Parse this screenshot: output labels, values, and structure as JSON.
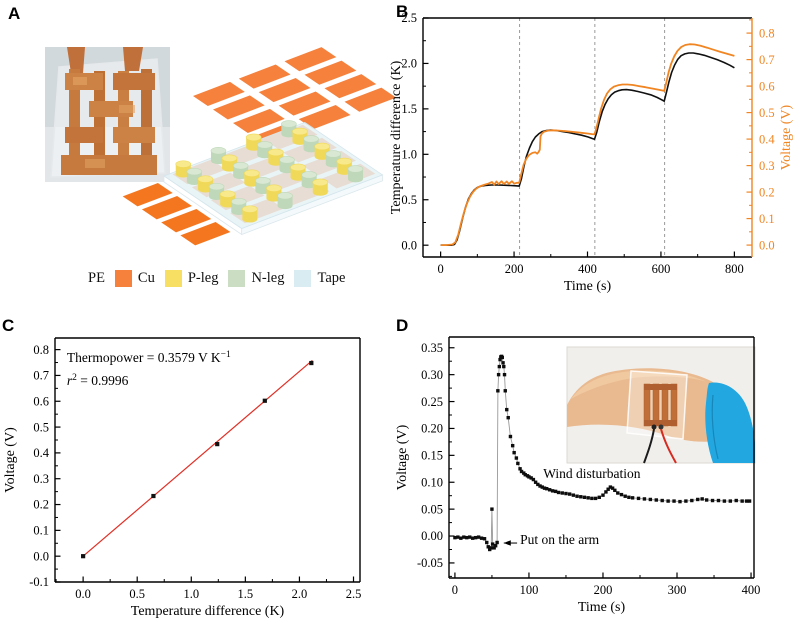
{
  "panels": {
    "a": {
      "label": "A",
      "legend": {
        "leading_label": "PE",
        "items": [
          {
            "label": "Cu",
            "color": "#F5813C"
          },
          {
            "label": "P-leg",
            "color": "#F7DF63"
          },
          {
            "label": "N-leg",
            "color": "#CBDEC4"
          },
          {
            "label": "Tape",
            "color": "#D9ECF2"
          }
        ]
      }
    },
    "b": {
      "label": "B"
    },
    "c": {
      "label": "C"
    },
    "d": {
      "label": "D"
    }
  },
  "colors": {
    "curve_black": "#111111",
    "curve_orange": "#F08522",
    "fit_red": "#E03127",
    "dash_gray": "#9a9a9a",
    "pad_orange": "#F5813C",
    "pad_orange_out": "#F4771F",
    "leg_yellow_side": "#F0D959",
    "leg_yellow_top": "#F8EA8C",
    "leg_green_side": "#BFD8B9",
    "leg_green_top": "#D8E8D2",
    "tape_fill": "#E4F1F5"
  },
  "chart_data": [
    {
      "id": "B",
      "type": "line",
      "title": "",
      "xlabel": "Time (s)",
      "ylabel": "Temperature difference (K)",
      "y2label": "Voltage (V)",
      "y2color": "#F08522",
      "xlim": [
        -48,
        848
      ],
      "ylim": [
        -0.13,
        2.5
      ],
      "y2lim": [
        -0.045,
        0.857
      ],
      "xticks": [
        {
          "v": 0,
          "l": "0"
        },
        {
          "v": 200,
          "l": "200"
        },
        {
          "v": 400,
          "l": "400"
        },
        {
          "v": 600,
          "l": "600"
        },
        {
          "v": 800,
          "l": "800"
        }
      ],
      "xminor": 100,
      "yticks": [
        {
          "v": 0,
          "l": "0.0"
        },
        {
          "v": 0.5,
          "l": "0.5"
        },
        {
          "v": 1.0,
          "l": "1.0"
        },
        {
          "v": 1.5,
          "l": "1.5"
        },
        {
          "v": 2.0,
          "l": "2.0"
        },
        {
          "v": 2.5,
          "l": "2.5"
        }
      ],
      "yminor": 0.25,
      "y2ticks": [
        {
          "v": 0,
          "l": "0.0"
        },
        {
          "v": 0.1,
          "l": "0.1"
        },
        {
          "v": 0.2,
          "l": "0.2"
        },
        {
          "v": 0.3,
          "l": "0.3"
        },
        {
          "v": 0.4,
          "l": "0.4"
        },
        {
          "v": 0.5,
          "l": "0.5"
        },
        {
          "v": 0.6,
          "l": "0.6"
        },
        {
          "v": 0.7,
          "l": "0.7"
        },
        {
          "v": 0.8,
          "l": "0.8"
        }
      ],
      "y2minor": 0.05,
      "vlines": [
        215,
        420,
        610
      ],
      "series": [
        {
          "name": "temperature-difference",
          "color": "#111111",
          "width": 1.6,
          "axis": "y",
          "x": [
            0,
            15,
            30,
            38,
            45,
            52,
            60,
            68,
            76,
            84,
            92,
            100,
            110,
            122,
            138,
            155,
            172,
            190,
            205,
            214,
            220,
            227,
            234,
            242,
            250,
            258,
            267,
            276,
            288,
            300,
            314,
            330,
            348,
            366,
            384,
            402,
            412,
            419,
            425,
            432,
            440,
            448,
            456,
            465,
            474,
            484,
            494,
            506,
            520,
            536,
            554,
            572,
            590,
            602,
            609,
            615,
            622,
            629,
            637,
            646,
            655,
            665,
            676,
            688,
            702,
            718,
            736,
            754,
            772,
            788,
            800
          ],
          "y": [
            0,
            0,
            0,
            0.01,
            0.06,
            0.16,
            0.3,
            0.42,
            0.51,
            0.57,
            0.61,
            0.635,
            0.65,
            0.658,
            0.662,
            0.662,
            0.66,
            0.657,
            0.653,
            0.65,
            0.73,
            0.87,
            0.98,
            1.07,
            1.14,
            1.19,
            1.225,
            1.25,
            1.262,
            1.268,
            1.262,
            1.252,
            1.24,
            1.225,
            1.21,
            1.19,
            1.175,
            1.165,
            1.24,
            1.36,
            1.47,
            1.55,
            1.61,
            1.655,
            1.685,
            1.7,
            1.71,
            1.712,
            1.705,
            1.692,
            1.675,
            1.655,
            1.625,
            1.6,
            1.585,
            1.68,
            1.8,
            1.9,
            1.98,
            2.045,
            2.085,
            2.105,
            2.115,
            2.115,
            2.105,
            2.09,
            2.065,
            2.04,
            2.01,
            1.98,
            1.952
          ]
        },
        {
          "name": "voltage",
          "color": "#F08522",
          "width": 1.8,
          "axis": "y2",
          "x": [
            0,
            15,
            32,
            40,
            48,
            56,
            64,
            72,
            80,
            88,
            96,
            106,
            118,
            130,
            140,
            146,
            152,
            158,
            166,
            172,
            180,
            186,
            194,
            200,
            208,
            214,
            220,
            226,
            233,
            241,
            250,
            258,
            263,
            267,
            270,
            272,
            276,
            282,
            292,
            306,
            322,
            340,
            360,
            380,
            400,
            412,
            419,
            424,
            430,
            437,
            445,
            453,
            462,
            472,
            483,
            495,
            509,
            524,
            540,
            558,
            576,
            594,
            609,
            615,
            621,
            628,
            636,
            645,
            655,
            666,
            678,
            692,
            708,
            726,
            744,
            762,
            780,
            800
          ],
          "y": [
            0,
            0,
            0.002,
            0.01,
            0.04,
            0.085,
            0.125,
            0.158,
            0.183,
            0.2,
            0.212,
            0.221,
            0.227,
            0.232,
            0.238,
            0.228,
            0.24,
            0.23,
            0.241,
            0.23,
            0.24,
            0.231,
            0.241,
            0.232,
            0.235,
            0.235,
            0.27,
            0.303,
            0.325,
            0.34,
            0.348,
            0.35,
            0.345,
            0.352,
            0.36,
            0.41,
            0.422,
            0.428,
            0.432,
            0.433,
            0.432,
            0.43,
            0.427,
            0.424,
            0.421,
            0.419,
            0.418,
            0.44,
            0.475,
            0.515,
            0.548,
            0.572,
            0.588,
            0.598,
            0.603,
            0.606,
            0.606,
            0.604,
            0.6,
            0.596,
            0.591,
            0.586,
            0.582,
            0.615,
            0.652,
            0.685,
            0.712,
            0.733,
            0.747,
            0.755,
            0.758,
            0.757,
            0.752,
            0.745,
            0.737,
            0.729,
            0.722,
            0.714
          ]
        }
      ]
    },
    {
      "id": "C",
      "type": "scatter",
      "title": "",
      "xlabel": "Temperature difference (K)",
      "ylabel": "Voltage (V)",
      "xlim": [
        -0.26,
        2.56
      ],
      "ylim": [
        -0.1,
        0.845
      ],
      "xticks": [
        {
          "v": 0,
          "l": "0.0"
        },
        {
          "v": 0.5,
          "l": "0.5"
        },
        {
          "v": 1.0,
          "l": "1.0"
        },
        {
          "v": 1.5,
          "l": "1.5"
        },
        {
          "v": 2.0,
          "l": "2.0"
        },
        {
          "v": 2.5,
          "l": "2.5"
        }
      ],
      "xminor": 0.25,
      "yticks": [
        {
          "v": -0.1,
          "l": "-0.1"
        },
        {
          "v": 0,
          "l": "0.0"
        },
        {
          "v": 0.1,
          "l": "0.1"
        },
        {
          "v": 0.2,
          "l": "0.2"
        },
        {
          "v": 0.3,
          "l": "0.3"
        },
        {
          "v": 0.4,
          "l": "0.4"
        },
        {
          "v": 0.5,
          "l": "0.5"
        },
        {
          "v": 0.6,
          "l": "0.6"
        },
        {
          "v": 0.7,
          "l": "0.7"
        },
        {
          "v": 0.8,
          "l": "0.8"
        }
      ],
      "yminor": 0.05,
      "series": [
        {
          "name": "linear-fit",
          "color": "#E03127",
          "width": 1.2,
          "axis": "y",
          "x": [
            0,
            2.12
          ],
          "y": [
            0,
            0.7588
          ]
        },
        {
          "name": "data-points",
          "color": "#111111",
          "axis": "y",
          "line": false,
          "marker": "square",
          "msize": 4.2,
          "x": [
            0.0,
            0.65,
            1.24,
            1.68,
            2.11
          ],
          "y": [
            0.0,
            0.233,
            0.434,
            0.602,
            0.748
          ]
        }
      ],
      "annotations": [
        {
          "x": -0.15,
          "y": 0.752,
          "anchor": "start",
          "size": 13.5,
          "segments": [
            {
              "t": "Thermopower = 0.3579 V K"
            },
            {
              "t": "−1",
              "sup": true
            }
          ]
        },
        {
          "x": -0.15,
          "y": 0.663,
          "anchor": "start",
          "size": 13.5,
          "segments": [
            {
              "t": "r",
              "i": true
            },
            {
              "t": "2",
              "sup": true
            },
            {
              "t": " = 0.9996"
            }
          ]
        }
      ],
      "fit_stats": {
        "thermopower_V_per_K": 0.3579,
        "r_squared": 0.9996
      }
    },
    {
      "id": "D",
      "type": "scatter",
      "title": "",
      "xlabel": "Time (s)",
      "ylabel": "Voltage (V)",
      "xlim": [
        -8,
        404
      ],
      "ylim": [
        -0.078,
        0.37
      ],
      "xticks": [
        {
          "v": 0,
          "l": "0"
        },
        {
          "v": 100,
          "l": "100"
        },
        {
          "v": 200,
          "l": "200"
        },
        {
          "v": 300,
          "l": "300"
        },
        {
          "v": 400,
          "l": "400"
        }
      ],
      "xminor": 50,
      "yticks": [
        {
          "v": -0.05,
          "l": "-0.05"
        },
        {
          "v": 0,
          "l": "0.00"
        },
        {
          "v": 0.05,
          "l": "0.05"
        },
        {
          "v": 0.1,
          "l": "0.10"
        },
        {
          "v": 0.15,
          "l": "0.15"
        },
        {
          "v": 0.2,
          "l": "0.20"
        },
        {
          "v": 0.25,
          "l": "0.25"
        },
        {
          "v": 0.3,
          "l": "0.30"
        },
        {
          "v": 0.35,
          "l": "0.35"
        }
      ],
      "yminor": 0.025,
      "series": [
        {
          "name": "skin-voltage",
          "color": "#999999",
          "width": 0.9,
          "axis": "y",
          "marker": "square",
          "msize": 3.4,
          "mcolor": "#0d0d0d",
          "x": [
            0,
            4,
            8,
            12,
            16,
            20,
            24,
            28,
            32,
            36,
            40,
            43,
            45,
            47,
            49,
            50,
            51,
            53,
            55,
            57,
            58,
            59,
            60,
            61,
            62,
            63,
            64,
            65,
            66,
            67,
            68,
            70,
            72,
            75,
            78,
            80,
            83,
            85,
            88,
            90,
            93,
            95,
            98,
            100,
            103,
            106,
            109,
            112,
            115,
            118,
            121,
            124,
            128,
            132,
            136,
            140,
            145,
            150,
            155,
            160,
            165,
            170,
            175,
            180,
            185,
            190,
            195,
            200,
            204,
            207,
            210,
            213,
            216,
            220,
            225,
            230,
            235,
            240,
            248,
            256,
            264,
            272,
            280,
            288,
            296,
            304,
            312,
            320,
            328,
            334,
            340,
            348,
            356,
            364,
            372,
            380,
            388,
            394,
            398
          ],
          "y": [
            -0.003,
            -0.002,
            -0.004,
            -0.002,
            -0.003,
            -0.002,
            -0.004,
            -0.003,
            -0.002,
            -0.004,
            -0.005,
            -0.012,
            -0.02,
            -0.025,
            -0.022,
            0.05,
            -0.015,
            -0.022,
            -0.018,
            -0.012,
            0.27,
            0.3,
            0.315,
            0.328,
            0.333,
            0.334,
            0.332,
            0.322,
            0.315,
            0.3,
            0.27,
            0.235,
            0.22,
            0.185,
            0.168,
            0.155,
            0.145,
            0.135,
            0.125,
            0.12,
            0.117,
            0.114,
            0.112,
            0.11,
            0.108,
            0.105,
            0.1,
            0.096,
            0.093,
            0.091,
            0.089,
            0.088,
            0.086,
            0.084,
            0.083,
            0.081,
            0.08,
            0.079,
            0.078,
            0.076,
            0.074,
            0.073,
            0.072,
            0.071,
            0.07,
            0.07,
            0.072,
            0.076,
            0.082,
            0.087,
            0.091,
            0.089,
            0.085,
            0.08,
            0.077,
            0.074,
            0.072,
            0.071,
            0.07,
            0.069,
            0.068,
            0.067,
            0.066,
            0.065,
            0.065,
            0.064,
            0.065,
            0.066,
            0.068,
            0.069,
            0.067,
            0.066,
            0.066,
            0.065,
            0.065,
            0.066,
            0.065,
            0.065,
            0.065
          ]
        }
      ],
      "annotations": [
        {
          "x": 88,
          "y": -0.015,
          "anchor": "start",
          "size": 13.5,
          "segments": [
            {
              "t": "Put on the arm"
            }
          ],
          "arrow": {
            "x1": 84,
            "y1": -0.013,
            "x2": 66,
            "y2": -0.013
          }
        },
        {
          "x": 185,
          "y": 0.108,
          "anchor": "middle",
          "size": 13.5,
          "segments": [
            {
              "t": "Wind disturbation"
            }
          ]
        }
      ]
    }
  ]
}
